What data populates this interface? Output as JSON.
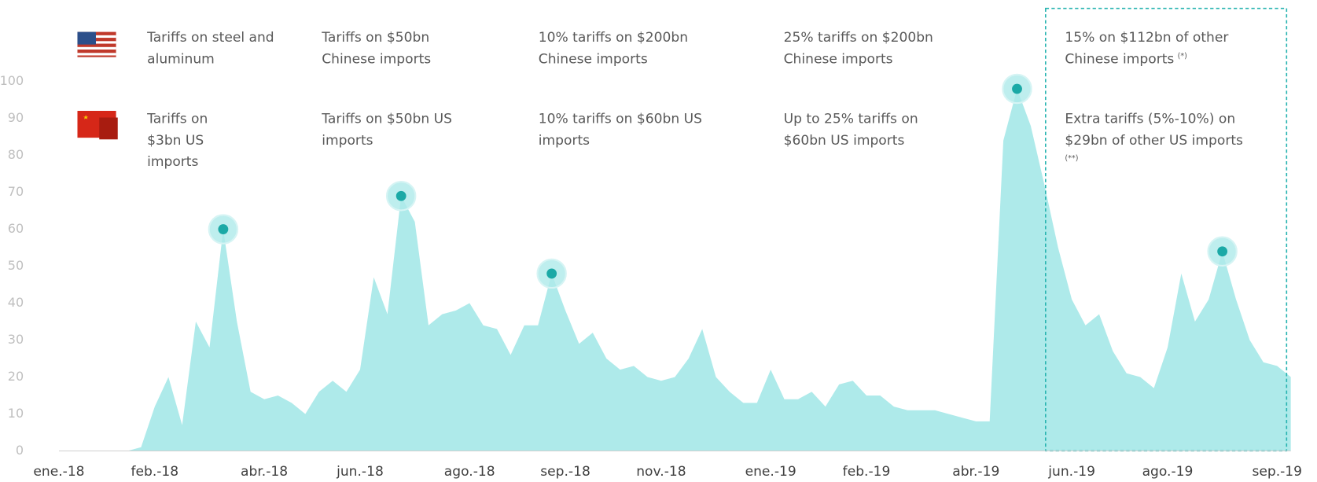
{
  "chart_data": {
    "type": "area",
    "color": "#aeeaea",
    "marker_color": "#1ba9a6",
    "ylim": [
      0,
      100
    ],
    "yticks": [
      0,
      10,
      20,
      30,
      40,
      50,
      60,
      70,
      80,
      90,
      100
    ],
    "categories": [
      "ene.-18",
      null,
      null,
      null,
      null,
      null,
      null,
      "feb.-18",
      null,
      null,
      null,
      null,
      null,
      null,
      null,
      "abr.-18",
      null,
      null,
      null,
      null,
      null,
      null,
      "jun.-18",
      null,
      null,
      null,
      null,
      null,
      null,
      null,
      "ago.-18",
      null,
      null,
      null,
      null,
      null,
      null,
      "sep.-18",
      null,
      null,
      null,
      null,
      null,
      null,
      "nov.-18",
      null,
      null,
      null,
      null,
      null,
      null,
      null,
      "ene.-19",
      null,
      null,
      null,
      null,
      null,
      null,
      "feb.-19",
      null,
      null,
      null,
      null,
      null,
      null,
      null,
      "abr.-19",
      null,
      null,
      null,
      null,
      null,
      null,
      "jun.-19",
      null,
      null,
      null,
      null,
      null,
      null,
      "ago.-19",
      null,
      null,
      null,
      null,
      null,
      null,
      null,
      "sep.-19",
      null
    ],
    "values": [
      0,
      0,
      0,
      0,
      0,
      0,
      1,
      12,
      20,
      7,
      35,
      28,
      60,
      35,
      16,
      14,
      15,
      13,
      10,
      16,
      19,
      16,
      22,
      47,
      37,
      69,
      62,
      34,
      37,
      38,
      40,
      34,
      33,
      26,
      34,
      34,
      48,
      38,
      29,
      32,
      25,
      22,
      23,
      20,
      19,
      20,
      25,
      33,
      20,
      16,
      13,
      13,
      22,
      14,
      14,
      16,
      12,
      18,
      19,
      15,
      15,
      12,
      11,
      11,
      11,
      10,
      9,
      8,
      8,
      84,
      98,
      88,
      72,
      55,
      41,
      34,
      37,
      27,
      21,
      20,
      17,
      28,
      48,
      35,
      41,
      54,
      41,
      30,
      24,
      23,
      20
    ],
    "highlights": [
      12,
      25,
      36,
      70,
      85
    ],
    "annotations": {
      "us": [
        {
          "lines": [
            "Tariffs on steel and",
            "aluminum"
          ]
        },
        {
          "lines": [
            "Tariffs on $50bn",
            "Chinese imports"
          ]
        },
        {
          "lines": [
            "10%  tariffs on $200bn",
            "Chinese imports"
          ]
        },
        {
          "lines": [
            "25%  tariffs on $200bn",
            "Chinese imports"
          ]
        },
        {
          "lines": [
            "15% on $112bn of other",
            "Chinese imports"
          ],
          "note": "(*)"
        }
      ],
      "china": [
        {
          "lines": [
            "Tariffs on",
            "$3bn US",
            "imports"
          ]
        },
        {
          "lines": [
            "Tariffs on $50bn US",
            "imports"
          ]
        },
        {
          "lines": [
            "10%  tariffs on $60bn US",
            "imports"
          ]
        },
        {
          "lines": [
            "Up to 25%  tariffs on",
            "$60bn US imports"
          ]
        },
        {
          "lines": [
            "Extra tariffs (5%-10%) on",
            "$29bn of other US imports"
          ],
          "note": "(**)"
        }
      ]
    }
  }
}
